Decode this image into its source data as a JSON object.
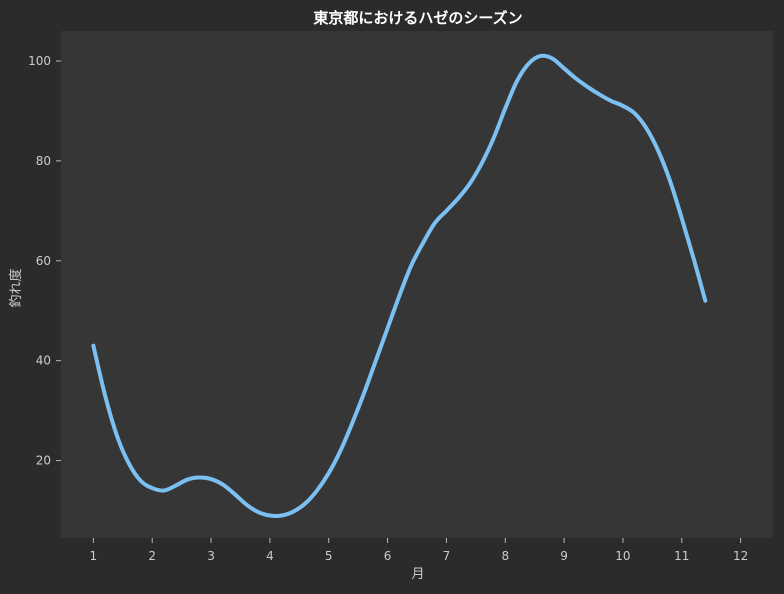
{
  "chart_data": {
    "type": "line",
    "title": "東京都におけるハゼのシーズン",
    "xlabel": "月",
    "ylabel": "釣れ度",
    "x": [
      1,
      2,
      3,
      4,
      5,
      6,
      7,
      8,
      9,
      10,
      11,
      12
    ],
    "xlim": [
      0.45,
      12.55
    ],
    "ylim": [
      4.5,
      106
    ],
    "yticks": [
      20,
      40,
      60,
      80,
      100
    ],
    "grid": false,
    "series": [
      {
        "points": [
          [
            1.0,
            43
          ],
          [
            1.2,
            33
          ],
          [
            1.4,
            25
          ],
          [
            1.6,
            19.5
          ],
          [
            1.8,
            16
          ],
          [
            2.0,
            14.5
          ],
          [
            2.2,
            14
          ],
          [
            2.4,
            15
          ],
          [
            2.6,
            16.2
          ],
          [
            2.8,
            16.6
          ],
          [
            3.0,
            16.3
          ],
          [
            3.2,
            15.2
          ],
          [
            3.4,
            13.3
          ],
          [
            3.6,
            11.2
          ],
          [
            3.8,
            9.7
          ],
          [
            4.0,
            9.0
          ],
          [
            4.2,
            9.0
          ],
          [
            4.4,
            9.8
          ],
          [
            4.6,
            11.4
          ],
          [
            4.8,
            14
          ],
          [
            5.0,
            17.5
          ],
          [
            5.2,
            22
          ],
          [
            5.4,
            27.5
          ],
          [
            5.6,
            33.5
          ],
          [
            5.8,
            40
          ],
          [
            6.0,
            46.5
          ],
          [
            6.2,
            53
          ],
          [
            6.4,
            59
          ],
          [
            6.6,
            63.5
          ],
          [
            6.8,
            67.5
          ],
          [
            7.0,
            70
          ],
          [
            7.2,
            72.5
          ],
          [
            7.4,
            75.5
          ],
          [
            7.6,
            79.5
          ],
          [
            7.8,
            84.5
          ],
          [
            8.0,
            90.5
          ],
          [
            8.2,
            96
          ],
          [
            8.4,
            99.5
          ],
          [
            8.6,
            101
          ],
          [
            8.8,
            100.5
          ],
          [
            9.0,
            98.5
          ],
          [
            9.2,
            96.5
          ],
          [
            9.4,
            94.8
          ],
          [
            9.6,
            93.3
          ],
          [
            9.8,
            92
          ],
          [
            10.0,
            91
          ],
          [
            10.2,
            89.5
          ],
          [
            10.4,
            86.5
          ],
          [
            10.6,
            82
          ],
          [
            10.8,
            76
          ],
          [
            11.0,
            68.5
          ],
          [
            11.2,
            60.5
          ],
          [
            11.4,
            52
          ]
        ],
        "color": "#7cc0f2"
      }
    ]
  }
}
